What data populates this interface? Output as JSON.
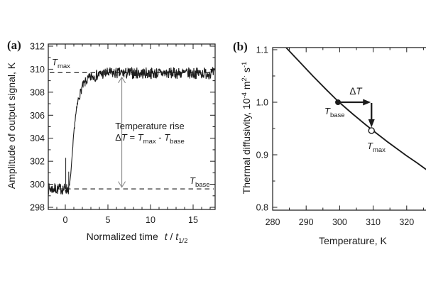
{
  "figure": {
    "background": "#ffffff",
    "ink_color": "#1c1c1c",
    "gray_arrow_color": "#8a8a8a"
  },
  "panel_a": {
    "tag": "(a)",
    "ylabel": "Amplitude of output signal, K",
    "xlabel": {
      "prefix": "Normalized time",
      "t1": "t",
      "slash": "/",
      "t2": "t",
      "sub": "1/2"
    },
    "tmax_label": {
      "T": "T",
      "sub": "max"
    },
    "tbase_label": {
      "T": "T",
      "sub": "base"
    },
    "annotation": {
      "line1": "Temperature rise",
      "delta": "Δ",
      "T": "T",
      "eq": "=",
      "T1": "T",
      "sub1": "max",
      "minus": "-",
      "T2": "T",
      "sub2": "base"
    }
  },
  "panel_b": {
    "tag": "(b)",
    "ylabel": {
      "prefix": "Thermal diffusivity, 10",
      "sup1": "-4",
      "mid1": " m",
      "sup2": "2",
      "dot": "·",
      "mid2": " s",
      "sup3": "-1"
    },
    "xlabel": "Temperature, K",
    "dT_label": {
      "delta": "Δ",
      "T": "T"
    },
    "tbase_label": {
      "T": "T",
      "sub": "base"
    },
    "tmax_label": {
      "T": "T",
      "sub": "max"
    }
  },
  "chart_data": [
    {
      "type": "line",
      "panel": "a",
      "xlabel": "Normalized time t/t_1/2",
      "ylabel": "Amplitude of output signal, K",
      "xlim": [
        -2,
        17.6
      ],
      "ylim": [
        298,
        312
      ],
      "xticks": [
        0,
        5,
        10,
        15
      ],
      "x_minor_step": 1,
      "yticks": [
        298,
        300,
        302,
        304,
        306,
        308,
        310,
        312
      ],
      "y_minor_step": 1,
      "grid": false,
      "baseline_K": 299.6,
      "plateau_K": 309.65,
      "noise_K": 0.5,
      "dashed_lines": [
        {
          "label": "T_max",
          "K": 309.7
        },
        {
          "label": "T_base",
          "K": 299.6
        }
      ],
      "spikes": [
        {
          "t": 0.05,
          "peak_K": 302.3
        },
        {
          "t": 0.4,
          "peak_K": 301.1
        }
      ],
      "rise_points": [
        [
          0.45,
          299.7
        ],
        [
          0.6,
          300.6
        ],
        [
          0.8,
          302.4
        ],
        [
          1.0,
          304.5
        ],
        [
          1.2,
          305.9
        ],
        [
          1.5,
          307.3
        ],
        [
          2.0,
          308.5
        ],
        [
          2.5,
          309.0
        ],
        [
          3.0,
          309.3
        ],
        [
          4.0,
          309.55
        ],
        [
          5.0,
          309.65
        ]
      ],
      "annotation_text": [
        "Temperature rise",
        "ΔT = T_max - T_base"
      ],
      "arrow": {
        "t": 6.63,
        "from_K": 309.3,
        "to_K": 299.75
      }
    },
    {
      "type": "line",
      "panel": "b",
      "xlabel": "Temperature, K",
      "ylabel": "Thermal diffusivity, 10^-4 m^2·s^-1",
      "xlim": [
        280,
        325.8
      ],
      "ylim": [
        0.8,
        1.1
      ],
      "xticks": [
        280,
        290,
        300,
        310,
        320
      ],
      "x_minor_step": 5,
      "yticks": [
        0.8,
        0.9,
        1.0,
        1.1
      ],
      "y_minor_step": 0.05,
      "grid": false,
      "curve": [
        [
          282.5,
          1.115
        ],
        [
          284.0,
          1.104
        ],
        [
          288,
          1.077
        ],
        [
          292,
          1.05
        ],
        [
          296,
          1.024
        ],
        [
          299.5,
          1.002
        ],
        [
          304,
          0.977
        ],
        [
          308,
          0.956
        ],
        [
          311,
          0.941
        ],
        [
          314,
          0.926
        ],
        [
          317,
          0.912
        ],
        [
          320,
          0.898
        ],
        [
          323,
          0.885
        ],
        [
          325.8,
          0.872
        ]
      ],
      "T_base_point": {
        "T": 299.5,
        "alpha": 1.0,
        "marker": "filled-circle"
      },
      "T_max_point": {
        "T": 309.5,
        "alpha": 0.946,
        "marker": "open-circle"
      },
      "delta_T_K": 10,
      "annotation_text": [
        "ΔT",
        "T_base",
        "T_max"
      ]
    }
  ]
}
